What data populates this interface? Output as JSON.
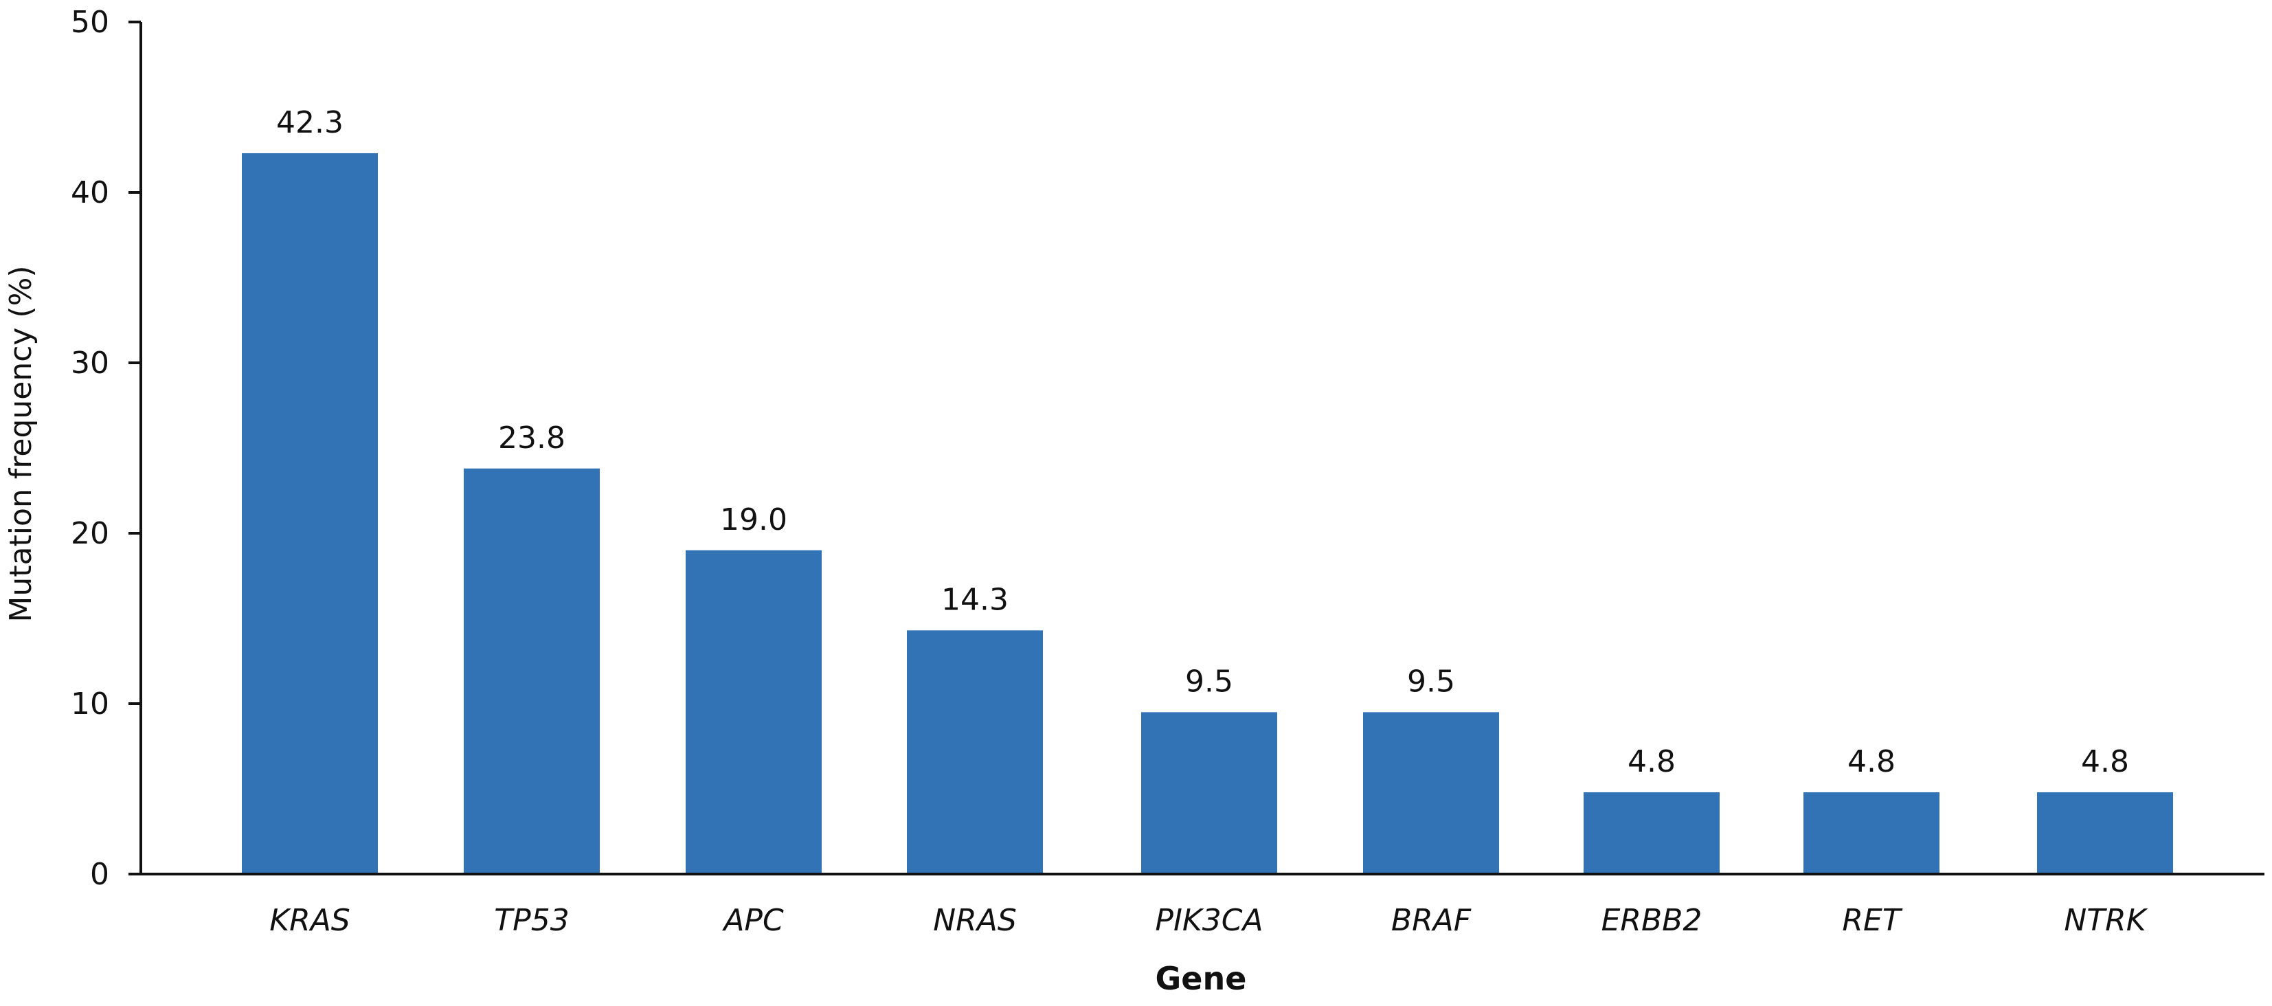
{
  "chart_data": {
    "type": "bar",
    "title": "",
    "categories": [
      "KRAS",
      "TP53",
      "APC",
      "NRAS",
      "PIK3CA",
      "BRAF",
      "ERBB2",
      "RET",
      "NTRK"
    ],
    "values": [
      42.3,
      23.8,
      19.0,
      14.3,
      9.5,
      9.5,
      4.8,
      4.8,
      4.8
    ],
    "value_labels": [
      "42.3",
      "23.8",
      "19.0",
      "14.3",
      "9.5",
      "9.5",
      "4.8",
      "4.8",
      "4.8"
    ],
    "xlabel": "Gene",
    "ylabel": "Mutation frequency (%)",
    "ylim": [
      0,
      50
    ],
    "yticks": [
      0,
      10,
      20,
      30,
      40,
      50
    ],
    "grid": false,
    "legend": "none",
    "colors": {
      "bar": "#3173b4",
      "axis": "#111111",
      "text": "#111111"
    }
  }
}
